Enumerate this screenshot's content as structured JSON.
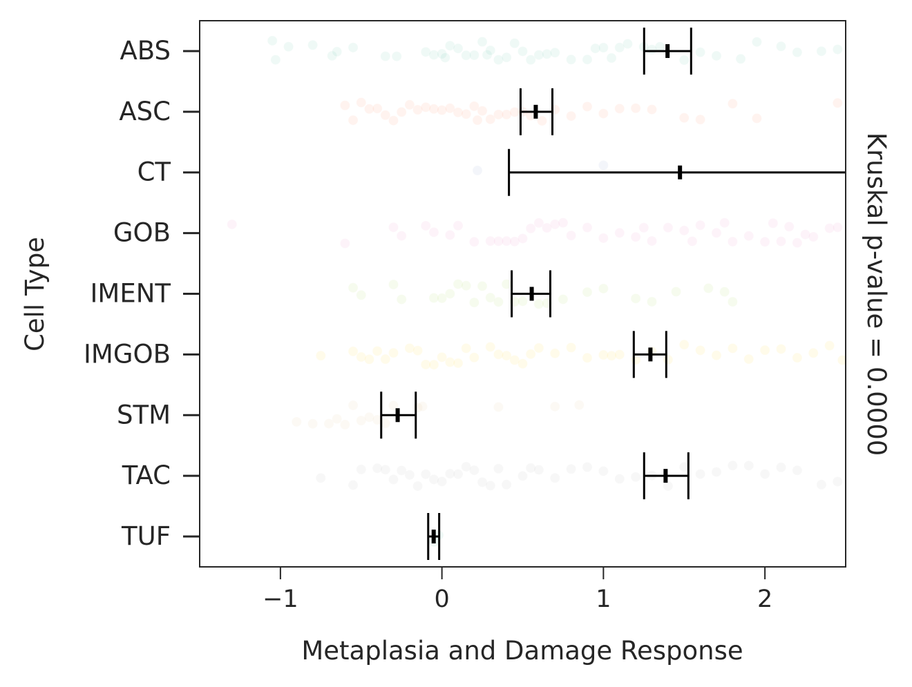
{
  "chart_data": {
    "type": "scatter",
    "title": "",
    "xlabel": "Metaplasia and Damage Response",
    "ylabel": "Cell Type",
    "right_label": "Kruskal p-value = 0.0000",
    "xlim": [
      -1.5,
      2.5
    ],
    "xticks": [
      -1,
      0,
      1,
      2
    ],
    "xtick_labels": [
      "−1",
      "0",
      "1",
      "2"
    ],
    "grid": false,
    "categories": [
      "ABS",
      "ASC",
      "CT",
      "GOB",
      "IMENT",
      "IMGOB",
      "STM",
      "TAC",
      "TUF"
    ],
    "colors": [
      "#66c2a5",
      "#fc8d62",
      "#8da0cb",
      "#e78ac3",
      "#a6d854",
      "#ffd92f",
      "#e5c494",
      "#b3b3b3",
      "#66c2a5"
    ],
    "point_alpha": 0.1,
    "points": [
      [
        -1.05,
        -1.03,
        -0.95,
        -0.8,
        -0.68,
        -0.65,
        -0.55,
        -0.35,
        -0.28,
        -0.1,
        -0.05,
        0.0,
        0.02,
        0.05,
        0.1,
        0.15,
        0.2,
        0.25,
        0.28,
        0.3,
        0.35,
        0.4,
        0.45,
        0.5,
        0.55,
        0.6,
        0.65,
        0.7,
        0.8,
        0.9,
        0.95,
        1.0,
        1.05,
        1.1,
        1.15,
        1.25,
        1.3,
        1.35,
        1.5,
        1.6,
        1.7,
        1.85,
        1.95,
        2.1,
        2.2,
        2.35,
        2.45
      ],
      [
        -0.6,
        -0.55,
        -0.5,
        -0.45,
        -0.4,
        -0.35,
        -0.3,
        -0.25,
        -0.2,
        -0.15,
        -0.1,
        -0.05,
        0.0,
        0.05,
        0.1,
        0.15,
        0.2,
        0.22,
        0.25,
        0.3,
        0.35,
        0.4,
        0.45,
        0.5,
        0.55,
        0.62,
        0.7,
        0.8,
        0.9,
        1.0,
        1.1,
        1.2,
        1.3,
        1.5,
        1.6,
        1.8,
        1.95,
        2.45
      ],
      [
        0.22,
        1.0
      ],
      [
        -1.3,
        -0.6,
        -0.3,
        -0.25,
        -0.1,
        -0.05,
        0.05,
        0.1,
        0.2,
        0.3,
        0.35,
        0.4,
        0.45,
        0.5,
        0.55,
        0.6,
        0.65,
        0.7,
        0.75,
        0.8,
        0.9,
        1.0,
        1.1,
        1.2,
        1.25,
        1.3,
        1.4,
        1.5,
        1.55,
        1.6,
        1.7,
        1.75,
        1.8,
        1.9,
        2.0,
        2.05,
        2.1,
        2.15,
        2.2,
        2.25,
        2.3,
        2.4,
        2.45
      ],
      [
        -0.55,
        -0.5,
        -0.3,
        -0.25,
        -0.05,
        0.0,
        0.05,
        0.1,
        0.15,
        0.2,
        0.25,
        0.3,
        0.35,
        0.4,
        0.45,
        0.5,
        0.6,
        0.65,
        0.75,
        0.9,
        1.0,
        1.2,
        1.3,
        1.45,
        1.65,
        1.75,
        1.8
      ],
      [
        -0.75,
        -0.55,
        -0.5,
        -0.45,
        -0.4,
        -0.35,
        -0.3,
        -0.2,
        -0.15,
        -0.1,
        -0.05,
        0.0,
        0.05,
        0.1,
        0.15,
        0.2,
        0.3,
        0.35,
        0.4,
        0.45,
        0.5,
        0.55,
        0.6,
        0.7,
        0.8,
        0.9,
        1.0,
        1.05,
        1.1,
        1.2,
        1.3,
        1.4,
        1.5,
        1.6,
        1.7,
        1.8,
        1.9,
        2.0,
        2.1,
        2.2,
        2.3,
        2.4,
        2.48
      ],
      [
        -0.9,
        -0.8,
        -0.7,
        -0.65,
        -0.6,
        -0.55,
        -0.5,
        -0.45,
        -0.4,
        -0.35,
        -0.3,
        -0.15,
        -0.12,
        0.35,
        0.7,
        0.85
      ],
      [
        -0.75,
        -0.55,
        -0.5,
        -0.4,
        -0.35,
        -0.3,
        -0.25,
        -0.2,
        -0.15,
        -0.1,
        -0.05,
        0.0,
        0.05,
        0.1,
        0.15,
        0.2,
        0.25,
        0.3,
        0.35,
        0.4,
        0.5,
        0.55,
        0.6,
        0.7,
        0.8,
        0.9,
        1.0,
        1.1,
        1.2,
        1.3,
        1.4,
        1.5,
        1.6,
        1.7,
        1.8,
        1.9,
        2.0,
        2.1,
        2.2,
        2.35,
        2.45
      ],
      [
        -0.05,
        -0.02
      ]
    ],
    "error_bars": [
      {
        "mean": 1.397,
        "low": 1.252,
        "high": 1.543
      },
      {
        "mean": 0.581,
        "low": 0.487,
        "high": 0.684
      },
      {
        "mean": 1.474,
        "low": 0.415,
        "high": 2.6
      },
      null,
      {
        "mean": 0.556,
        "low": 0.432,
        "high": 0.671
      },
      {
        "mean": 1.291,
        "low": 1.188,
        "high": 1.389
      },
      {
        "mean": -0.274,
        "low": -0.376,
        "high": -0.162
      },
      {
        "mean": 1.385,
        "low": 1.252,
        "high": 1.526
      },
      {
        "mean": -0.051,
        "low": -0.085,
        "high": -0.017
      }
    ]
  }
}
